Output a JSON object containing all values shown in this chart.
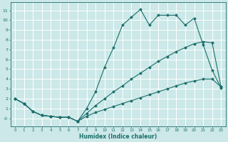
{
  "xlabel": "Humidex (Indice chaleur)",
  "bg_color": "#cce8e8",
  "grid_color": "#ffffff",
  "line_color": "#1a6e6a",
  "line1_x": [
    0,
    1,
    2,
    3,
    4,
    5,
    6,
    7,
    8,
    9,
    10,
    11,
    12,
    13,
    14,
    15,
    16,
    17,
    18,
    19,
    20,
    21,
    22,
    23
  ],
  "line1_y": [
    2.0,
    1.5,
    0.7,
    0.3,
    0.2,
    0.1,
    0.1,
    -0.3,
    1.0,
    2.7,
    5.2,
    7.2,
    9.5,
    10.3,
    11.1,
    9.5,
    10.5,
    10.5,
    10.5,
    9.5,
    10.2,
    7.5,
    4.9,
    3.1
  ],
  "line2_x": [
    0,
    1,
    2,
    3,
    4,
    5,
    6,
    7,
    8,
    9,
    10,
    11,
    12,
    13,
    14,
    15,
    16,
    17,
    18,
    19,
    20,
    21,
    22,
    23
  ],
  "line2_y": [
    2.0,
    1.5,
    0.7,
    0.3,
    0.2,
    0.1,
    0.1,
    -0.3,
    0.5,
    1.3,
    2.0,
    2.7,
    3.3,
    4.0,
    4.6,
    5.2,
    5.8,
    6.3,
    6.8,
    7.2,
    7.6,
    7.8,
    7.7,
    3.2
  ],
  "line3_x": [
    0,
    1,
    2,
    3,
    4,
    5,
    6,
    7,
    8,
    9,
    10,
    11,
    12,
    13,
    14,
    15,
    16,
    17,
    18,
    19,
    20,
    21,
    22,
    23
  ],
  "line3_y": [
    2.0,
    1.5,
    0.7,
    0.3,
    0.2,
    0.1,
    0.1,
    -0.3,
    0.2,
    0.6,
    0.9,
    1.2,
    1.5,
    1.8,
    2.1,
    2.4,
    2.7,
    3.0,
    3.3,
    3.6,
    3.8,
    4.0,
    4.0,
    3.2
  ],
  "xlim": [
    -0.5,
    23.5
  ],
  "ylim": [
    -0.8,
    11.8
  ],
  "xticks": [
    0,
    1,
    2,
    3,
    4,
    5,
    6,
    7,
    8,
    9,
    10,
    11,
    12,
    13,
    14,
    15,
    16,
    17,
    18,
    19,
    20,
    21,
    22,
    23
  ],
  "yticks": [
    0,
    1,
    2,
    3,
    4,
    5,
    6,
    7,
    8,
    9,
    10,
    11
  ],
  "ytick_labels": [
    "-0",
    "1",
    "2",
    "3",
    "4",
    "5",
    "6",
    "7",
    "8",
    "9",
    "10",
    "11"
  ]
}
